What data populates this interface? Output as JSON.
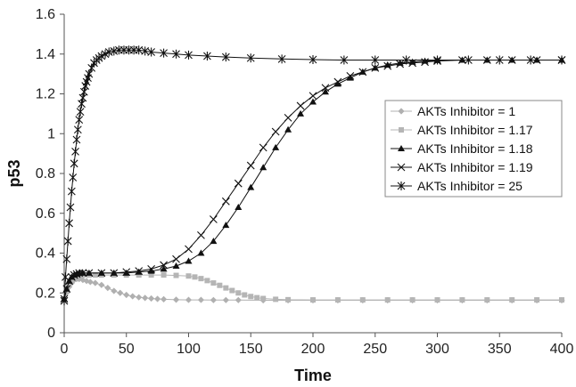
{
  "chart_data": {
    "type": "line",
    "title": "",
    "xlabel": "Time",
    "ylabel": "p53",
    "xlim": [
      0,
      400
    ],
    "ylim": [
      0,
      1.6
    ],
    "xticks": [
      0,
      50,
      100,
      150,
      200,
      250,
      300,
      350,
      400
    ],
    "yticks": [
      0,
      0.2,
      0.4,
      0.6,
      0.8,
      1,
      1.2,
      1.4,
      1.6
    ],
    "grid": false,
    "legend_position": "right",
    "series": [
      {
        "name": "AKTs Inhibitor = 1",
        "marker": "diamond",
        "color": "#b0b0b0",
        "x": [
          0,
          2,
          4,
          6,
          8,
          10,
          12,
          15,
          18,
          21,
          25,
          30,
          35,
          40,
          45,
          50,
          55,
          60,
          65,
          70,
          75,
          80,
          90,
          100,
          110,
          120,
          130,
          140,
          160,
          180,
          200,
          220,
          240,
          260,
          280,
          300,
          320,
          340,
          360,
          380,
          400
        ],
        "y": [
          0.17,
          0.2,
          0.23,
          0.25,
          0.265,
          0.27,
          0.27,
          0.265,
          0.26,
          0.255,
          0.25,
          0.24,
          0.225,
          0.21,
          0.2,
          0.19,
          0.183,
          0.178,
          0.175,
          0.172,
          0.17,
          0.168,
          0.166,
          0.165,
          0.165,
          0.164,
          0.164,
          0.164,
          0.163,
          0.163,
          0.163,
          0.163,
          0.163,
          0.163,
          0.163,
          0.163,
          0.163,
          0.163,
          0.163,
          0.163,
          0.163
        ]
      },
      {
        "name": "AKTs Inhibitor = 1.17",
        "marker": "square",
        "color": "#b5b5b5",
        "x": [
          0,
          2,
          4,
          6,
          8,
          10,
          12,
          15,
          20,
          25,
          30,
          40,
          50,
          60,
          70,
          80,
          90,
          100,
          105,
          110,
          115,
          120,
          125,
          130,
          135,
          140,
          145,
          150,
          155,
          160,
          170,
          180,
          200,
          220,
          240,
          260,
          280,
          300,
          320,
          340,
          360,
          380,
          400
        ],
        "y": [
          0.17,
          0.21,
          0.25,
          0.27,
          0.28,
          0.285,
          0.288,
          0.29,
          0.29,
          0.29,
          0.29,
          0.29,
          0.29,
          0.29,
          0.29,
          0.29,
          0.288,
          0.285,
          0.28,
          0.272,
          0.262,
          0.25,
          0.238,
          0.225,
          0.212,
          0.2,
          0.19,
          0.182,
          0.176,
          0.172,
          0.168,
          0.166,
          0.165,
          0.165,
          0.165,
          0.165,
          0.165,
          0.165,
          0.165,
          0.165,
          0.165,
          0.165,
          0.165
        ]
      },
      {
        "name": "AKTs Inhibitor = 1.18",
        "marker": "triangle",
        "color": "#111111",
        "x": [
          0,
          2,
          4,
          6,
          8,
          10,
          12,
          15,
          20,
          30,
          40,
          50,
          60,
          70,
          80,
          90,
          100,
          110,
          120,
          130,
          140,
          150,
          160,
          170,
          180,
          190,
          200,
          210,
          220,
          230,
          240,
          250,
          260,
          270,
          280,
          290,
          300,
          320,
          340,
          360,
          380,
          400
        ],
        "y": [
          0.17,
          0.22,
          0.26,
          0.28,
          0.29,
          0.295,
          0.3,
          0.3,
          0.3,
          0.3,
          0.3,
          0.3,
          0.305,
          0.31,
          0.32,
          0.335,
          0.36,
          0.4,
          0.46,
          0.54,
          0.63,
          0.73,
          0.83,
          0.93,
          1.02,
          1.1,
          1.16,
          1.21,
          1.25,
          1.28,
          1.31,
          1.33,
          1.345,
          1.355,
          1.36,
          1.365,
          1.368,
          1.37,
          1.37,
          1.37,
          1.37,
          1.37
        ]
      },
      {
        "name": "AKTs Inhibitor = 1.19",
        "marker": "x",
        "color": "#111111",
        "x": [
          0,
          2,
          4,
          6,
          8,
          10,
          12,
          15,
          20,
          30,
          40,
          50,
          60,
          70,
          80,
          90,
          100,
          110,
          120,
          130,
          140,
          150,
          160,
          170,
          180,
          190,
          200,
          210,
          220,
          230,
          240,
          250,
          260,
          270,
          280,
          290,
          300,
          320,
          340,
          360,
          380,
          400
        ],
        "y": [
          0.17,
          0.22,
          0.26,
          0.28,
          0.29,
          0.295,
          0.3,
          0.3,
          0.3,
          0.3,
          0.3,
          0.305,
          0.31,
          0.32,
          0.34,
          0.37,
          0.42,
          0.49,
          0.57,
          0.66,
          0.75,
          0.84,
          0.93,
          1.01,
          1.08,
          1.14,
          1.19,
          1.23,
          1.26,
          1.29,
          1.31,
          1.33,
          1.34,
          1.35,
          1.355,
          1.36,
          1.365,
          1.37,
          1.37,
          1.37,
          1.37,
          1.37
        ]
      },
      {
        "name": "AKTs Inhibitor = 25",
        "marker": "star",
        "color": "#111111",
        "x": [
          0,
          1,
          2,
          3,
          4,
          5,
          6,
          7,
          8,
          9,
          10,
          11,
          12,
          13,
          14,
          15,
          16,
          17,
          18,
          19,
          20,
          22,
          24,
          26,
          28,
          30,
          33,
          36,
          40,
          44,
          48,
          52,
          56,
          60,
          65,
          70,
          80,
          90,
          100,
          115,
          130,
          150,
          175,
          200,
          225,
          250,
          275,
          300,
          325,
          350,
          375,
          400
        ],
        "y": [
          0.16,
          0.28,
          0.37,
          0.46,
          0.55,
          0.63,
          0.71,
          0.78,
          0.85,
          0.91,
          0.97,
          1.02,
          1.07,
          1.11,
          1.15,
          1.18,
          1.21,
          1.24,
          1.26,
          1.28,
          1.3,
          1.33,
          1.355,
          1.37,
          1.38,
          1.39,
          1.4,
          1.41,
          1.415,
          1.42,
          1.42,
          1.42,
          1.42,
          1.42,
          1.415,
          1.41,
          1.405,
          1.4,
          1.395,
          1.39,
          1.385,
          1.38,
          1.375,
          1.372,
          1.37,
          1.37,
          1.37,
          1.37,
          1.37,
          1.37,
          1.37,
          1.37
        ]
      }
    ]
  }
}
